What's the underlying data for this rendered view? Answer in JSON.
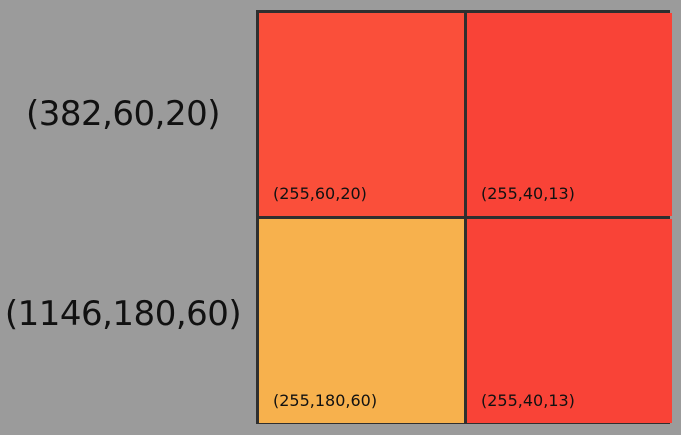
{
  "rows": [
    {
      "label": "(382,60,20)",
      "cells": [
        {
          "label": "(255,60,20)",
          "color": "#fa4f3a"
        },
        {
          "label": "(255,40,13)",
          "color": "#f94337"
        }
      ]
    },
    {
      "label": "(1146,180,60)",
      "cells": [
        {
          "label": "(255,180,60)",
          "color": "#f7b14d"
        },
        {
          "label": "(255,40,13)",
          "color": "#f94337"
        }
      ]
    }
  ]
}
